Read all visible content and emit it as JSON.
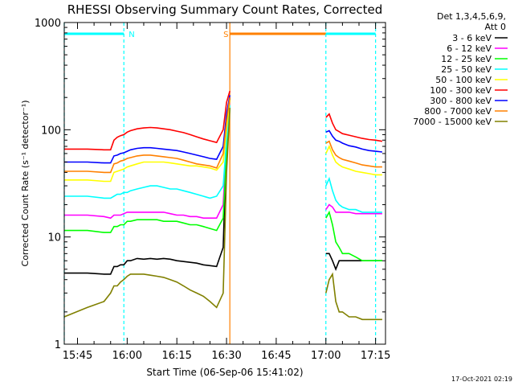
{
  "chart_data": {
    "type": "line",
    "title": "RHESSI Observing Summary Count Rates, Corrected",
    "xlabel": "Start Time (06-Sep-06 15:41:02)",
    "ylabel": "Corrected Count Rate (s⁻¹ detector⁻¹)",
    "x_unit": "minutes after 15:41:02 UT",
    "xlim": [
      0,
      97
    ],
    "ylim": [
      1,
      1000
    ],
    "yscale": "log",
    "x_ticks": [
      {
        "t": 4,
        "label": "15:45"
      },
      {
        "t": 19,
        "label": "16:00"
      },
      {
        "t": 34,
        "label": "16:15"
      },
      {
        "t": 49,
        "label": "16:30"
      },
      {
        "t": 64,
        "label": "16:45"
      },
      {
        "t": 79,
        "label": "17:00"
      },
      {
        "t": 94,
        "label": "17:15"
      }
    ],
    "y_ticks": [
      {
        "v": 1,
        "label": "1"
      },
      {
        "v": 10,
        "label": "10"
      },
      {
        "v": 100,
        "label": "100"
      },
      {
        "v": 1000,
        "label": "1000"
      }
    ],
    "legend_header": [
      "Det 1,3,4,5,6,9,",
      "Att 0"
    ],
    "legend_position": "right",
    "footer_date": "17-Oct-2021 02:19",
    "grid": false,
    "data_gaps": [
      [
        50,
        79
      ]
    ],
    "series": [
      {
        "name": "3 - 6 keV",
        "color": "#000000",
        "x": [
          0,
          7,
          12,
          14,
          15,
          16,
          17,
          18,
          19,
          20,
          22,
          24,
          26,
          28,
          30,
          32,
          34,
          36,
          38,
          40,
          42,
          44,
          46,
          48,
          49,
          50,
          79,
          80,
          81,
          82,
          83,
          84,
          86,
          88,
          90,
          92,
          94,
          96
        ],
        "y": [
          4.6,
          4.6,
          4.5,
          4.5,
          5.3,
          5.3,
          5.5,
          5.5,
          6,
          6,
          6.3,
          6.2,
          6.3,
          6.2,
          6.3,
          6.2,
          6,
          5.9,
          5.8,
          5.7,
          5.5,
          5.4,
          5.3,
          8,
          80,
          200,
          7,
          7,
          6,
          5,
          6,
          6,
          6,
          6,
          6,
          6,
          6,
          6
        ]
      },
      {
        "name": "6 - 12 keV",
        "color": "#ff00ff",
        "x": [
          0,
          7,
          12,
          14,
          15,
          16,
          17,
          18,
          19,
          20,
          22,
          24,
          26,
          28,
          30,
          32,
          34,
          36,
          38,
          40,
          42,
          44,
          46,
          48,
          49,
          50,
          79,
          80,
          81,
          82,
          83,
          84,
          86,
          88,
          90,
          92,
          94,
          96
        ],
        "y": [
          16,
          16,
          15.5,
          15,
          16,
          16,
          16,
          16.5,
          17,
          17,
          17,
          17,
          17,
          17,
          17,
          16.5,
          16,
          16,
          15.5,
          15.5,
          15,
          15,
          15,
          20,
          80,
          180,
          18,
          20,
          19,
          17,
          17,
          17,
          17,
          16.5,
          16.5,
          16.5,
          16.5,
          16.5
        ]
      },
      {
        "name": "12 - 25 keV",
        "color": "#00ff00",
        "x": [
          0,
          7,
          12,
          14,
          15,
          16,
          17,
          18,
          19,
          20,
          22,
          24,
          26,
          28,
          30,
          32,
          34,
          36,
          38,
          40,
          42,
          44,
          46,
          48,
          49,
          50,
          79,
          80,
          81,
          82,
          83,
          84,
          86,
          88,
          90,
          92,
          94,
          96
        ],
        "y": [
          11.5,
          11.5,
          11,
          11,
          12.5,
          12.5,
          13,
          13,
          14,
          14,
          14.5,
          14.5,
          14.5,
          14.5,
          14,
          14,
          14,
          13.5,
          13,
          13,
          12.5,
          12,
          11.5,
          15,
          60,
          160,
          15,
          17,
          13,
          9,
          8,
          7,
          7,
          6.5,
          6,
          6,
          6,
          6
        ]
      },
      {
        "name": "25 - 50 keV",
        "color": "#00ffff",
        "x": [
          0,
          7,
          12,
          14,
          15,
          16,
          17,
          18,
          19,
          20,
          22,
          24,
          26,
          28,
          30,
          32,
          34,
          36,
          38,
          40,
          42,
          44,
          46,
          48,
          49,
          50,
          79,
          80,
          81,
          82,
          83,
          84,
          86,
          88,
          90,
          92,
          94,
          96
        ],
        "y": [
          24,
          24,
          23,
          23,
          24,
          25,
          25,
          26,
          26,
          27,
          28,
          29,
          30,
          30,
          29,
          28,
          28,
          27,
          26,
          25,
          24,
          23,
          24,
          30,
          80,
          170,
          30,
          35,
          27,
          22,
          20,
          19,
          18,
          18,
          17,
          17,
          17,
          17
        ]
      },
      {
        "name": "50 - 100 keV",
        "color": "#ffff00",
        "x": [
          0,
          7,
          12,
          14,
          15,
          16,
          17,
          18,
          19,
          20,
          22,
          24,
          26,
          28,
          30,
          32,
          34,
          36,
          38,
          40,
          42,
          44,
          46,
          48,
          49,
          50,
          79,
          80,
          81,
          82,
          83,
          84,
          86,
          88,
          90,
          92,
          94,
          96
        ],
        "y": [
          34,
          34,
          33,
          33,
          40,
          41,
          42,
          43,
          45,
          46,
          48,
          50,
          50,
          50,
          50,
          49,
          48,
          47,
          46,
          46,
          45,
          44,
          42,
          50,
          100,
          190,
          60,
          70,
          58,
          50,
          47,
          45,
          43,
          41,
          40,
          39,
          38,
          38
        ]
      },
      {
        "name": "100 - 300 keV",
        "color": "#ff0000",
        "x": [
          0,
          7,
          12,
          14,
          15,
          16,
          17,
          18,
          19,
          20,
          22,
          24,
          26,
          28,
          30,
          32,
          34,
          36,
          38,
          40,
          42,
          44,
          46,
          48,
          49,
          50,
          79,
          80,
          81,
          82,
          83,
          84,
          86,
          88,
          90,
          92,
          94,
          96
        ],
        "y": [
          66,
          66,
          65,
          65,
          80,
          85,
          88,
          90,
          95,
          98,
          102,
          104,
          105,
          104,
          102,
          100,
          97,
          94,
          90,
          86,
          82,
          79,
          76,
          100,
          180,
          230,
          130,
          140,
          115,
          100,
          96,
          92,
          89,
          86,
          83,
          81,
          80,
          78
        ]
      },
      {
        "name": "300 - 800 keV",
        "color": "#0000ff",
        "x": [
          0,
          7,
          12,
          14,
          15,
          16,
          17,
          18,
          19,
          20,
          22,
          24,
          26,
          28,
          30,
          32,
          34,
          36,
          38,
          40,
          42,
          44,
          46,
          48,
          49,
          50,
          79,
          80,
          81,
          82,
          83,
          84,
          86,
          88,
          90,
          92,
          94,
          96
        ],
        "y": [
          50,
          50,
          49,
          49,
          57,
          58,
          60,
          61,
          63,
          65,
          67,
          68,
          68,
          67,
          66,
          65,
          64,
          62,
          60,
          58,
          56,
          54,
          53,
          70,
          140,
          210,
          95,
          98,
          87,
          80,
          78,
          75,
          71,
          69,
          66,
          64,
          63,
          62
        ]
      },
      {
        "name": "800 - 7000 keV",
        "color": "#ff8000",
        "x": [
          0,
          7,
          12,
          14,
          15,
          16,
          17,
          18,
          19,
          20,
          22,
          24,
          26,
          28,
          30,
          32,
          34,
          36,
          38,
          40,
          42,
          44,
          46,
          48,
          49,
          50,
          79,
          80,
          81,
          82,
          83,
          84,
          86,
          88,
          90,
          92,
          94,
          96
        ],
        "y": [
          41,
          41,
          40,
          40,
          48,
          49,
          51,
          52,
          54,
          55,
          57,
          58,
          58,
          57,
          56,
          55,
          54,
          52,
          50,
          48,
          47,
          46,
          44,
          60,
          120,
          200,
          75,
          78,
          65,
          58,
          55,
          53,
          51,
          49,
          47,
          46,
          45,
          45
        ]
      },
      {
        "name": "7000 - 15000 keV",
        "color": "#808000",
        "x": [
          0,
          7,
          12,
          14,
          15,
          16,
          17,
          18,
          19,
          20,
          22,
          24,
          26,
          28,
          30,
          32,
          34,
          36,
          38,
          40,
          42,
          44,
          46,
          48,
          49,
          50,
          79,
          80,
          81,
          82,
          83,
          84,
          86,
          88,
          90,
          92,
          94,
          96
        ],
        "y": [
          1.8,
          2.2,
          2.5,
          3,
          3.5,
          3.5,
          3.8,
          4,
          4.3,
          4.5,
          4.5,
          4.5,
          4.4,
          4.3,
          4.2,
          4,
          3.8,
          3.5,
          3.2,
          3,
          2.8,
          2.5,
          2.2,
          3,
          40,
          160,
          3,
          4,
          4.5,
          2.5,
          2,
          2,
          1.8,
          1.8,
          1.7,
          1.7,
          1.7,
          1.7
        ]
      }
    ],
    "spacecraft_flags": [
      {
        "name": "night",
        "color": "#00ffff",
        "label": "",
        "x1": 0,
        "x2": 18
      },
      {
        "name": "night-2",
        "color": "#00ffff",
        "label": "",
        "x1": 79,
        "x2": 94
      },
      {
        "name": "saa",
        "color": "#ff8000",
        "label": "S",
        "x1": 50,
        "x2": 79
      }
    ],
    "flag_labels": [
      {
        "text": "N",
        "color": "#00ffff",
        "t": 18
      },
      {
        "text": "S",
        "color": "#ff8000",
        "t": 50
      }
    ],
    "vertical_markers": [
      {
        "t": 0,
        "color": "#00ffff",
        "style": "dashed"
      },
      {
        "t": 18,
        "color": "#00ffff",
        "style": "dashed"
      },
      {
        "t": 50,
        "color": "#ff8000",
        "style": "solid"
      },
      {
        "t": 79,
        "color": "#00ffff",
        "style": "dashed"
      },
      {
        "t": 94,
        "color": "#00ffff",
        "style": "dashed"
      }
    ]
  }
}
